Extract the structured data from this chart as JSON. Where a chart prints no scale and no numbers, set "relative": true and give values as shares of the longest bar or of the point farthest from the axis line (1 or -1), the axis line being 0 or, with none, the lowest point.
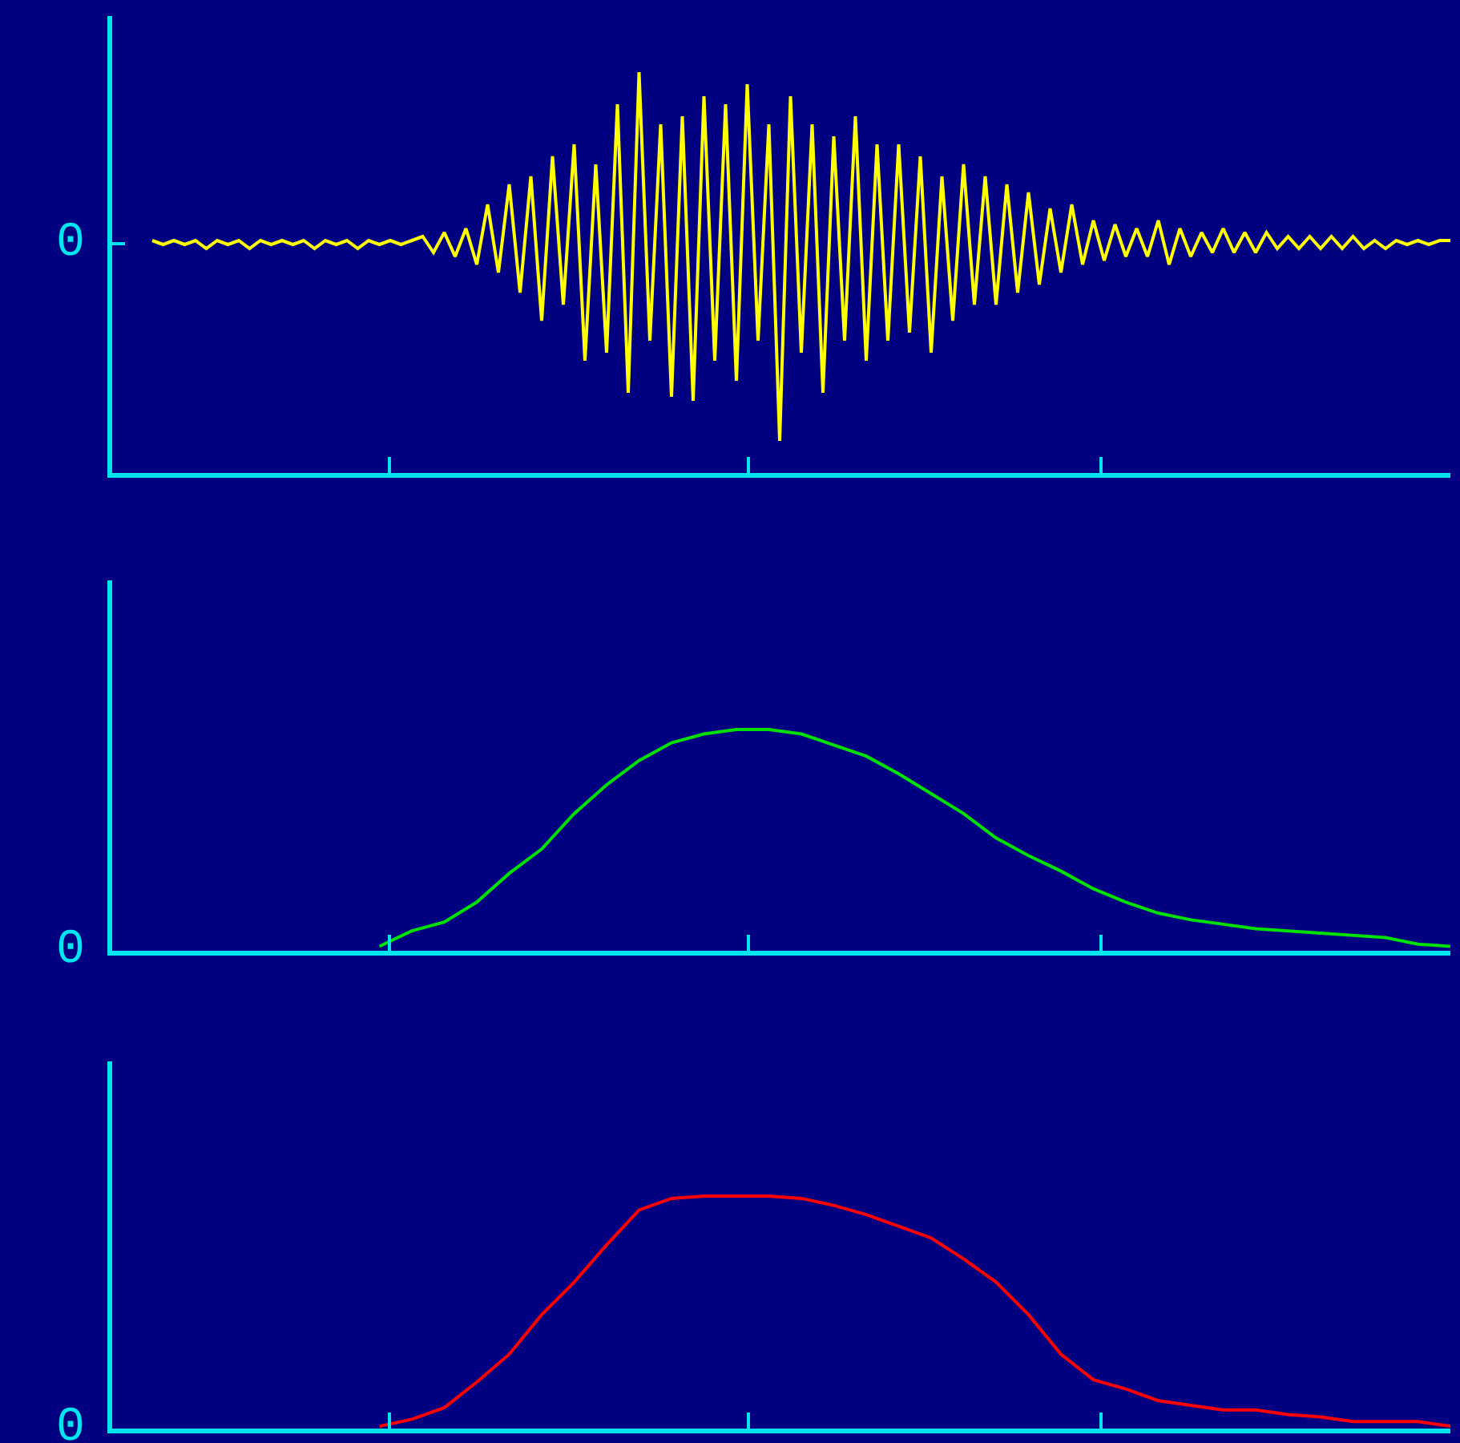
{
  "chart_data": [
    {
      "type": "line",
      "relative": true,
      "legend": false,
      "grid": false,
      "annotations": [
        "0"
      ],
      "categories": [
        null,
        null,
        null,
        null,
        null,
        null,
        null,
        null,
        null,
        null,
        null,
        null,
        null,
        null,
        null,
        null,
        null,
        null,
        null,
        null,
        null,
        null,
        null,
        null,
        null,
        null,
        null,
        null,
        null,
        null,
        null,
        null,
        null,
        null,
        null,
        null,
        null,
        null,
        null,
        null,
        null,
        null,
        null,
        null,
        null,
        null,
        null,
        null,
        null,
        null,
        null,
        null,
        null,
        null,
        null,
        null,
        null,
        null,
        null,
        null,
        null,
        null,
        null,
        null,
        null,
        null,
        null,
        null,
        null,
        null,
        null,
        null,
        null,
        null,
        null,
        null,
        null,
        null,
        null,
        null,
        null,
        null,
        null,
        null,
        null,
        null,
        null,
        null,
        null,
        null,
        null,
        null,
        null,
        null,
        null,
        null,
        null,
        null,
        null,
        null,
        null,
        null,
        null,
        null,
        null,
        null,
        null,
        null,
        null,
        null,
        null,
        null,
        null,
        null,
        null,
        null,
        null,
        null,
        null,
        null,
        null
      ],
      "series": [
        {
          "color": "#ffff00",
          "values": [
            0.58,
            0.57,
            0.58,
            0.57,
            0.58,
            0.56,
            0.58,
            0.57,
            0.58,
            0.56,
            0.58,
            0.57,
            0.58,
            0.57,
            0.58,
            0.56,
            0.58,
            0.57,
            0.58,
            0.56,
            0.58,
            0.57,
            0.58,
            0.57,
            0.58,
            0.59,
            0.55,
            0.6,
            0.54,
            0.61,
            0.52,
            0.67,
            0.5,
            0.72,
            0.45,
            0.74,
            0.38,
            0.79,
            0.42,
            0.82,
            0.28,
            0.77,
            0.3,
            0.92,
            0.2,
            1.0,
            0.33,
            0.87,
            0.19,
            0.89,
            0.18,
            0.94,
            0.28,
            0.92,
            0.23,
            0.97,
            0.33,
            0.87,
            0.08,
            0.94,
            0.3,
            0.87,
            0.2,
            0.84,
            0.33,
            0.89,
            0.28,
            0.82,
            0.33,
            0.82,
            0.35,
            0.79,
            0.3,
            0.74,
            0.38,
            0.77,
            0.42,
            0.74,
            0.42,
            0.72,
            0.45,
            0.7,
            0.47,
            0.66,
            0.5,
            0.67,
            0.52,
            0.63,
            0.53,
            0.62,
            0.54,
            0.61,
            0.54,
            0.63,
            0.52,
            0.61,
            0.54,
            0.6,
            0.55,
            0.61,
            0.55,
            0.6,
            0.55,
            0.6,
            0.56,
            0.59,
            0.56,
            0.59,
            0.56,
            0.59,
            0.56,
            0.59,
            0.56,
            0.58,
            0.56,
            0.58,
            0.57,
            0.58,
            0.57,
            0.58,
            0.58
          ]
        }
      ]
    },
    {
      "type": "line",
      "relative": true,
      "legend": false,
      "grid": false,
      "annotations": [
        "0"
      ],
      "categories": [
        null,
        null,
        null,
        null,
        null,
        null,
        null,
        null,
        null,
        null,
        null,
        null,
        null,
        null,
        null,
        null,
        null,
        null,
        null,
        null,
        null,
        null,
        null,
        null,
        null,
        null,
        null,
        null,
        null,
        null,
        null,
        null,
        null,
        null,
        null,
        null,
        null,
        null,
        null,
        null,
        null
      ],
      "series": [
        {
          "color": "#00e000",
          "values": [
            null,
            null,
            null,
            null,
            null,
            null,
            null,
            0.02,
            0.09,
            0.13,
            0.22,
            0.35,
            0.46,
            0.62,
            0.75,
            0.86,
            0.94,
            0.98,
            1.0,
            1.0,
            0.98,
            0.93,
            0.88,
            0.8,
            0.71,
            0.62,
            0.51,
            0.43,
            0.36,
            0.28,
            0.22,
            0.17,
            0.14,
            0.12,
            0.1,
            0.09,
            0.08,
            0.07,
            0.06,
            0.03,
            0.02
          ]
        }
      ]
    },
    {
      "type": "line",
      "relative": true,
      "legend": false,
      "grid": false,
      "annotations": [
        "0"
      ],
      "categories": [
        null,
        null,
        null,
        null,
        null,
        null,
        null,
        null,
        null,
        null,
        null,
        null,
        null,
        null,
        null,
        null,
        null,
        null,
        null,
        null,
        null,
        null,
        null,
        null,
        null,
        null,
        null,
        null,
        null,
        null,
        null,
        null,
        null,
        null,
        null,
        null,
        null,
        null,
        null,
        null,
        null
      ],
      "series": [
        {
          "color": "#ff0000",
          "values": [
            null,
            null,
            null,
            null,
            null,
            null,
            null,
            0.01,
            0.04,
            0.09,
            0.2,
            0.32,
            0.49,
            0.63,
            0.79,
            0.94,
            0.99,
            1.0,
            1.0,
            1.0,
            0.99,
            0.96,
            0.92,
            0.87,
            0.82,
            0.73,
            0.63,
            0.49,
            0.32,
            0.21,
            0.17,
            0.12,
            0.1,
            0.08,
            0.08,
            0.06,
            0.05,
            0.03,
            0.03,
            0.03,
            0.01
          ]
        }
      ]
    }
  ]
}
